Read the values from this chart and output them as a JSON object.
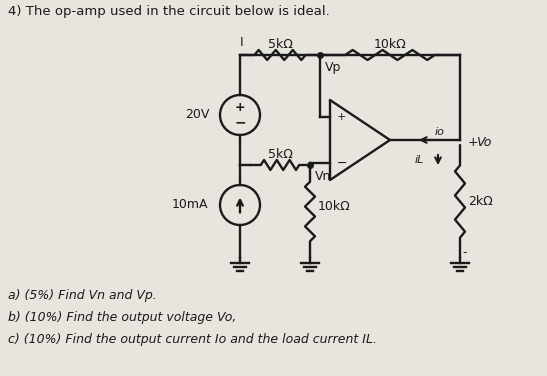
{
  "title": "4) The op-amp used in the circuit below is ideal.",
  "bg_color": "#e8e4de",
  "text_color": "#1a1a1a",
  "questions": [
    "a) (5%) Find Vn and Vp.",
    "b) (10%) Find the output voltage Vo,",
    "c) (10%) Find the output current Io and the load current IL."
  ],
  "labels": {
    "I": "I",
    "V20": "20V",
    "I10mA": "10mA",
    "R1": "5kΩ",
    "Vp": "Vp",
    "R2": "10kΩ",
    "R3": "5kΩ",
    "Vn": "Vn",
    "R4": "10kΩ",
    "Io": "io",
    "Vo": "Vo",
    "IL": "iL",
    "R5": "2kΩ",
    "plus_vo": "+",
    "minus_vo": "-"
  },
  "figsize": [
    5.47,
    3.76
  ],
  "dpi": 100
}
